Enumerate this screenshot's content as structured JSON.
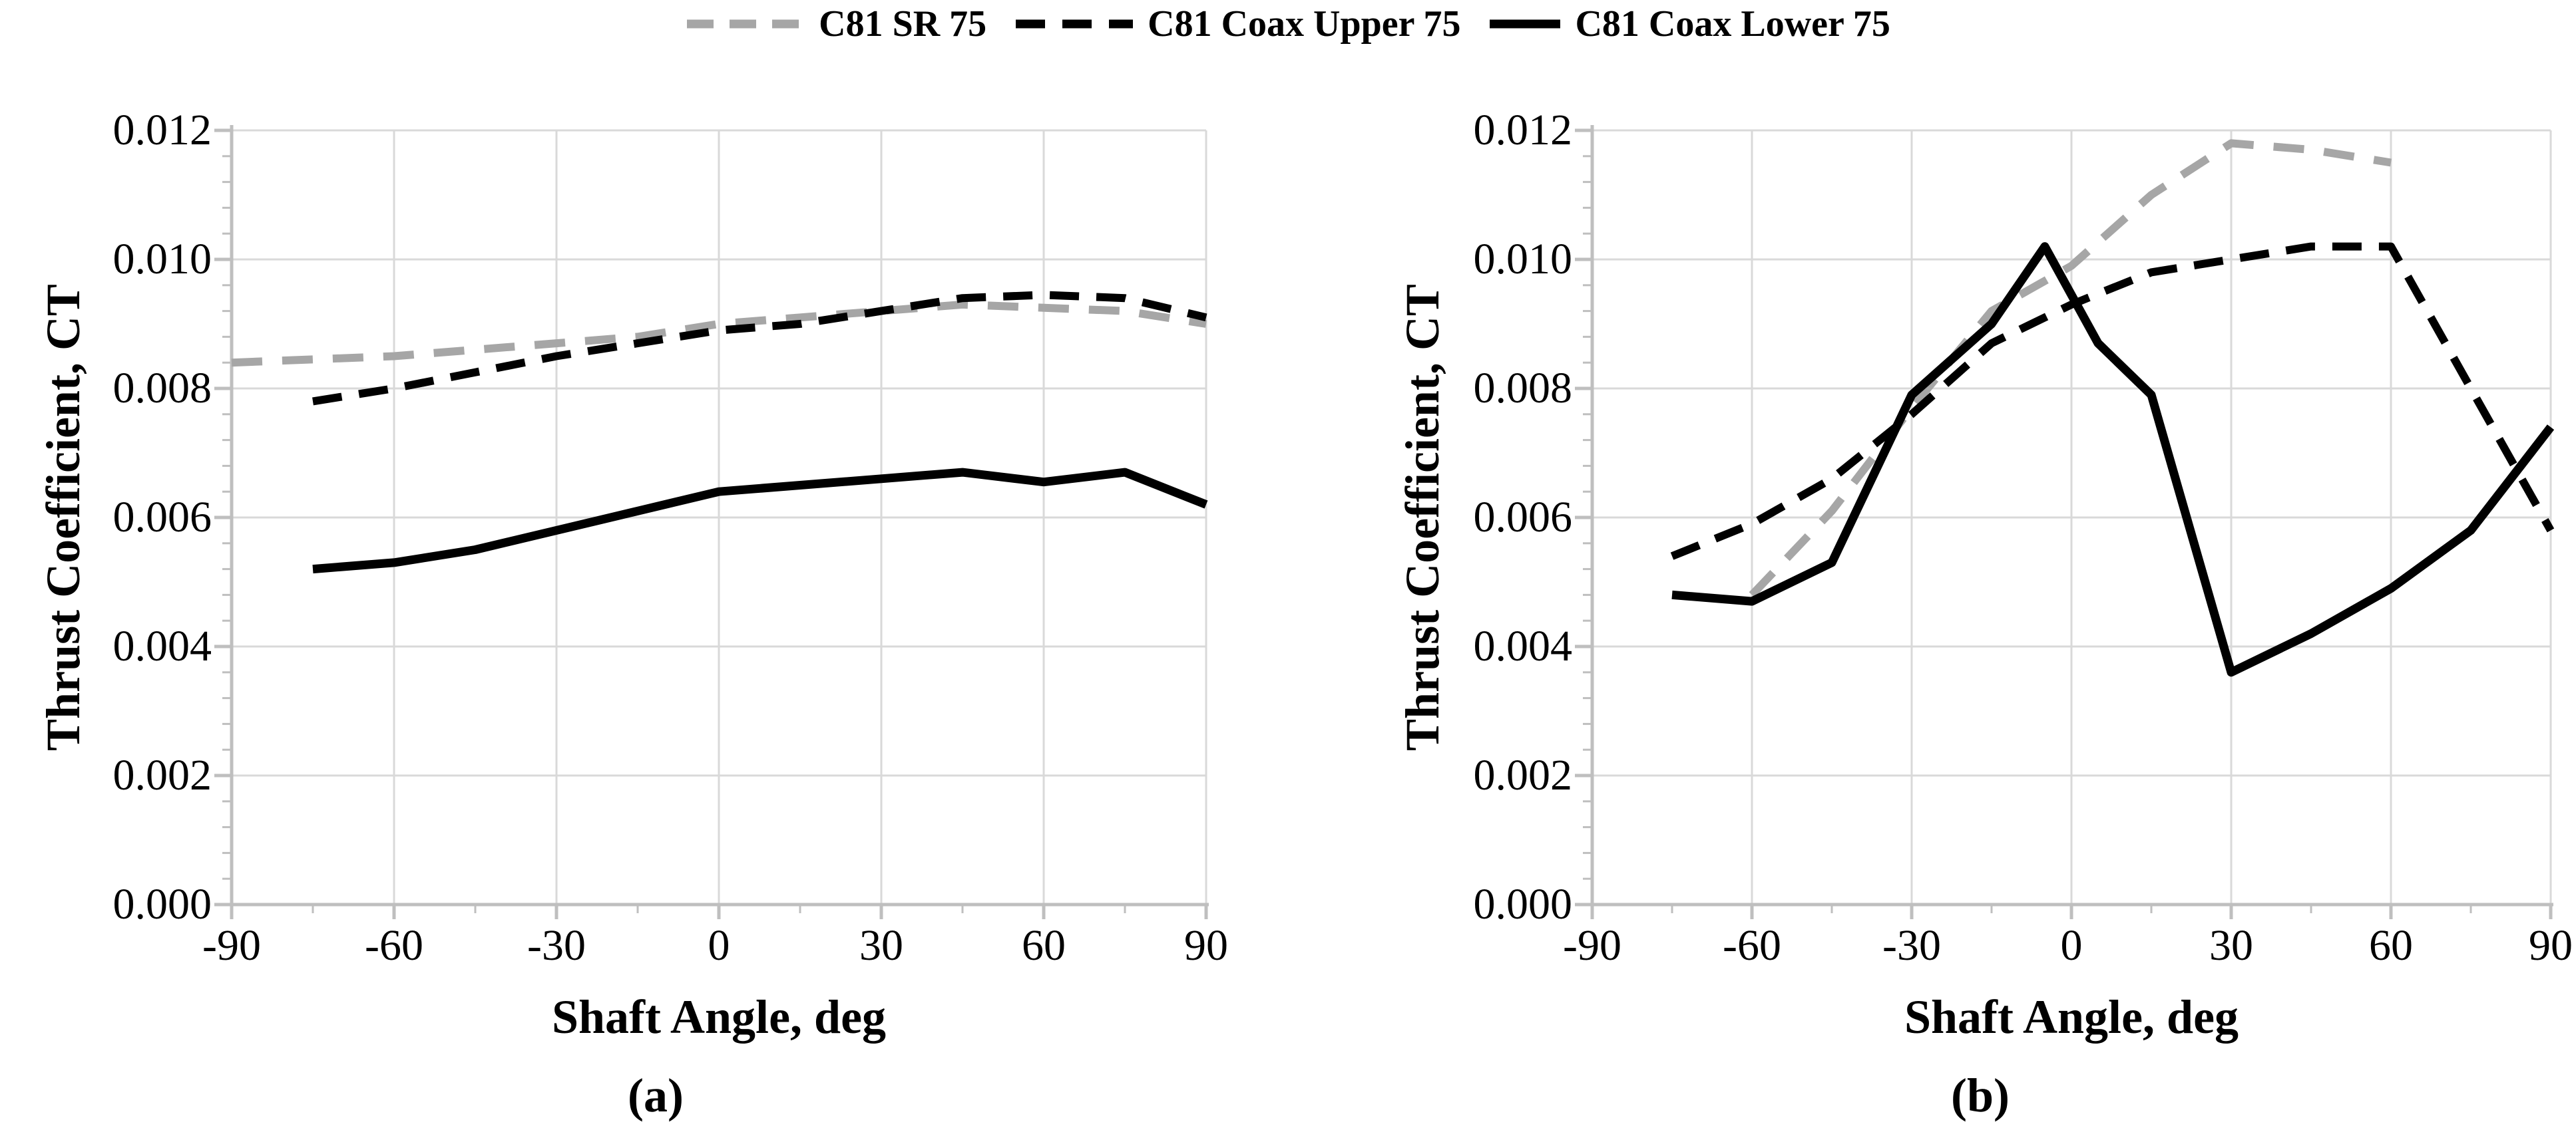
{
  "colors": {
    "series_gray": "#a6a6a6",
    "series_black": "#000000",
    "gridline": "#d9d9d9",
    "axis": "#bfbfbf",
    "text": "#000000",
    "background": "#ffffff"
  },
  "legend": {
    "position": "top-center",
    "items": [
      {
        "label": "C81 SR 75",
        "color": "#a6a6a6",
        "style": "dashed"
      },
      {
        "label": "C81 Coax Upper 75",
        "color": "#000000",
        "style": "dashed"
      },
      {
        "label": "C81 Coax Lower 75",
        "color": "#000000",
        "style": "solid"
      }
    ]
  },
  "chart_data": [
    {
      "type": "line",
      "panel": "a",
      "caption": "(a)",
      "xlabel": "Shaft Angle, deg",
      "ylabel": "Thrust Coefficient, CT",
      "xlim": [
        -90,
        90
      ],
      "ylim": [
        0,
        0.012
      ],
      "xticks": [
        -90,
        -60,
        -30,
        0,
        30,
        60,
        90
      ],
      "xtick_labels": [
        "-90",
        "-60",
        "-30",
        "0",
        "30",
        "60",
        "90"
      ],
      "x_minor_step": 15,
      "yticks": [
        0,
        0.002,
        0.004,
        0.006,
        0.008,
        0.01,
        0.012
      ],
      "ytick_labels": [
        "0.000",
        "0.002",
        "0.004",
        "0.006",
        "0.008",
        "0.010",
        "0.012"
      ],
      "y_minor_step": 0.0004,
      "grid": true,
      "legend_position": "top",
      "series": [
        {
          "name": "C81 SR 75",
          "color": "#a6a6a6",
          "dash": "dashed",
          "x": [
            -90,
            -75,
            -60,
            -45,
            -30,
            -15,
            0,
            15,
            30,
            45,
            60,
            75,
            90
          ],
          "y": [
            0.0084,
            0.00845,
            0.0085,
            0.0086,
            0.0087,
            0.0088,
            0.009,
            0.0091,
            0.0092,
            0.0093,
            0.00925,
            0.0092,
            0.009
          ]
        },
        {
          "name": "C81 Coax Upper 75",
          "color": "#000000",
          "dash": "dashed",
          "x": [
            -75,
            -60,
            -45,
            -30,
            -15,
            0,
            15,
            30,
            45,
            60,
            75,
            90
          ],
          "y": [
            0.0078,
            0.008,
            0.00825,
            0.0085,
            0.0087,
            0.0089,
            0.009,
            0.0092,
            0.0094,
            0.00945,
            0.0094,
            0.0091
          ]
        },
        {
          "name": "C81 Coax Lower 75",
          "color": "#000000",
          "dash": "solid",
          "x": [
            -75,
            -60,
            -45,
            -30,
            -15,
            0,
            15,
            30,
            45,
            60,
            75,
            90
          ],
          "y": [
            0.0052,
            0.0053,
            0.0055,
            0.0058,
            0.0061,
            0.0064,
            0.0065,
            0.0066,
            0.0067,
            0.00655,
            0.0067,
            0.0062
          ]
        }
      ]
    },
    {
      "type": "line",
      "panel": "b",
      "caption": "(b)",
      "xlabel": "Shaft Angle, deg",
      "ylabel": "Thrust Coefficient, CT",
      "xlim": [
        -90,
        90
      ],
      "ylim": [
        0,
        0.012
      ],
      "xticks": [
        -90,
        -60,
        -30,
        0,
        30,
        60,
        90
      ],
      "xtick_labels": [
        "-90",
        "-60",
        "-30",
        "0",
        "30",
        "60",
        "90"
      ],
      "x_minor_step": 15,
      "yticks": [
        0,
        0.002,
        0.004,
        0.006,
        0.008,
        0.01,
        0.012
      ],
      "ytick_labels": [
        "0.000",
        "0.002",
        "0.004",
        "0.006",
        "0.008",
        "0.010",
        "0.012"
      ],
      "y_minor_step": 0.0004,
      "grid": true,
      "legend_position": "top",
      "series": [
        {
          "name": "C81 SR 75",
          "color": "#a6a6a6",
          "dash": "dashed",
          "x": [
            -60,
            -45,
            -30,
            -15,
            0,
            15,
            30,
            45,
            60
          ],
          "y": [
            0.0048,
            0.0061,
            0.0077,
            0.0092,
            0.0099,
            0.011,
            0.0118,
            0.0117,
            0.0115
          ]
        },
        {
          "name": "C81 Coax Upper 75",
          "color": "#000000",
          "dash": "dashed",
          "x": [
            -75,
            -60,
            -45,
            -30,
            -15,
            0,
            15,
            30,
            45,
            60,
            75,
            90
          ],
          "y": [
            0.0054,
            0.0059,
            0.0066,
            0.0076,
            0.0087,
            0.0093,
            0.0098,
            0.01,
            0.0102,
            0.0102,
            0.008,
            0.0058
          ]
        },
        {
          "name": "C81 Coax Lower 75",
          "color": "#000000",
          "dash": "solid",
          "x": [
            -75,
            -60,
            -45,
            -30,
            -15,
            -5,
            5,
            15,
            30,
            45,
            60,
            75,
            90
          ],
          "y": [
            0.0048,
            0.0047,
            0.0053,
            0.0079,
            0.009,
            0.0102,
            0.0087,
            0.0079,
            0.0036,
            0.0042,
            0.0049,
            0.0058,
            0.0074
          ]
        }
      ]
    }
  ]
}
